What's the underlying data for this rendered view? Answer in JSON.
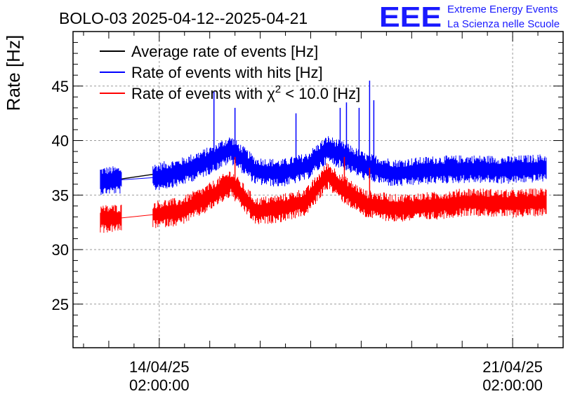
{
  "logo": {
    "letters": "EEE",
    "line1": "Extreme Energy Events",
    "line2": "La Scienza nelle Scuole",
    "color": "#1a1aff"
  },
  "chart_data": {
    "type": "line",
    "title": "BOLO-03 2025-04-12--2025-04-21",
    "ylabel": "Rate [Hz]",
    "xlabel": "",
    "ylim": [
      21,
      50
    ],
    "xlim": [
      "2025-04-12 09:00",
      "2025-04-22 02:00"
    ],
    "grid": true,
    "legend_position": "top-left",
    "yticks": [
      25,
      30,
      35,
      40,
      45
    ],
    "xticks": [
      {
        "date": "2025-04-14 02:00",
        "line1": "14/04/25",
        "line2": "02:00:00"
      },
      {
        "date": "2025-04-21 02:00",
        "line1": "21/04/25",
        "line2": "02:00:00"
      }
    ],
    "series": [
      {
        "name": "Average rate of events [Hz]",
        "color": "#000000",
        "points": [
          [
            "2025-04-12 22:00",
            36.2
          ],
          [
            "2025-04-13 23:00",
            36.9
          ]
        ]
      },
      {
        "name": "Rate of events with hits [Hz]",
        "name_parts": [
          "Rate of events with hits [Hz]"
        ],
        "color": "#0000ff",
        "band": 1.3,
        "points": [
          [
            "2025-04-12 22:00",
            36.3
          ],
          [
            "2025-04-13 08:00",
            36.4
          ],
          [
            "2025-04-13 23:00",
            36.6
          ],
          [
            "2025-04-14 12:00",
            37.1
          ],
          [
            "2025-04-15 00:00",
            38.0
          ],
          [
            "2025-04-15 12:00",
            39.2
          ],
          [
            "2025-04-16 00:00",
            37.2
          ],
          [
            "2025-04-16 12:00",
            37.0
          ],
          [
            "2025-04-17 00:00",
            37.6
          ],
          [
            "2025-04-17 10:00",
            39.2
          ],
          [
            "2025-04-17 18:00",
            38.6
          ],
          [
            "2025-04-18 04:00",
            37.6
          ],
          [
            "2025-04-18 18:00",
            37.0
          ],
          [
            "2025-04-19 12:00",
            37.3
          ],
          [
            "2025-04-20 06:00",
            37.4
          ],
          [
            "2025-04-21 00:00",
            37.3
          ],
          [
            "2025-04-21 18:00",
            37.5
          ]
        ],
        "spikes": [
          [
            "2025-04-15 04:00",
            44.5
          ],
          [
            "2025-04-15 14:00",
            43.0
          ],
          [
            "2025-04-16 19:00",
            42.5
          ],
          [
            "2025-04-17 16:00",
            43.0
          ],
          [
            "2025-04-17 19:00",
            43.5
          ],
          [
            "2025-04-18 01:00",
            43.0
          ],
          [
            "2025-04-18 06:00",
            45.5
          ],
          [
            "2025-04-18 08:00",
            43.7
          ]
        ]
      },
      {
        "name": "Rate of events with χ2 < 10.0 [Hz]",
        "name_parts": [
          "Rate of events with ",
          "χ",
          "2",
          " < 10.0 [Hz]"
        ],
        "color": "#ff0000",
        "band": 1.3,
        "points": [
          [
            "2025-04-12 22:00",
            32.8
          ],
          [
            "2025-04-13 08:00",
            32.9
          ],
          [
            "2025-04-13 23:00",
            33.2
          ],
          [
            "2025-04-14 12:00",
            33.5
          ],
          [
            "2025-04-15 00:00",
            34.6
          ],
          [
            "2025-04-15 12:00",
            36.1
          ],
          [
            "2025-04-16 00:00",
            33.5
          ],
          [
            "2025-04-16 12:00",
            33.8
          ],
          [
            "2025-04-17 00:00",
            34.4
          ],
          [
            "2025-04-17 10:00",
            36.8
          ],
          [
            "2025-04-17 18:00",
            35.5
          ],
          [
            "2025-04-18 04:00",
            34.2
          ],
          [
            "2025-04-18 18:00",
            33.8
          ],
          [
            "2025-04-19 12:00",
            34.0
          ],
          [
            "2025-04-20 06:00",
            34.4
          ],
          [
            "2025-04-21 00:00",
            34.2
          ],
          [
            "2025-04-21 18:00",
            34.4
          ]
        ],
        "spikes": [
          [
            "2025-04-15 14:00",
            38.5
          ],
          [
            "2025-04-17 18:00",
            38.5
          ],
          [
            "2025-04-18 06:00",
            37.5
          ]
        ]
      }
    ]
  }
}
